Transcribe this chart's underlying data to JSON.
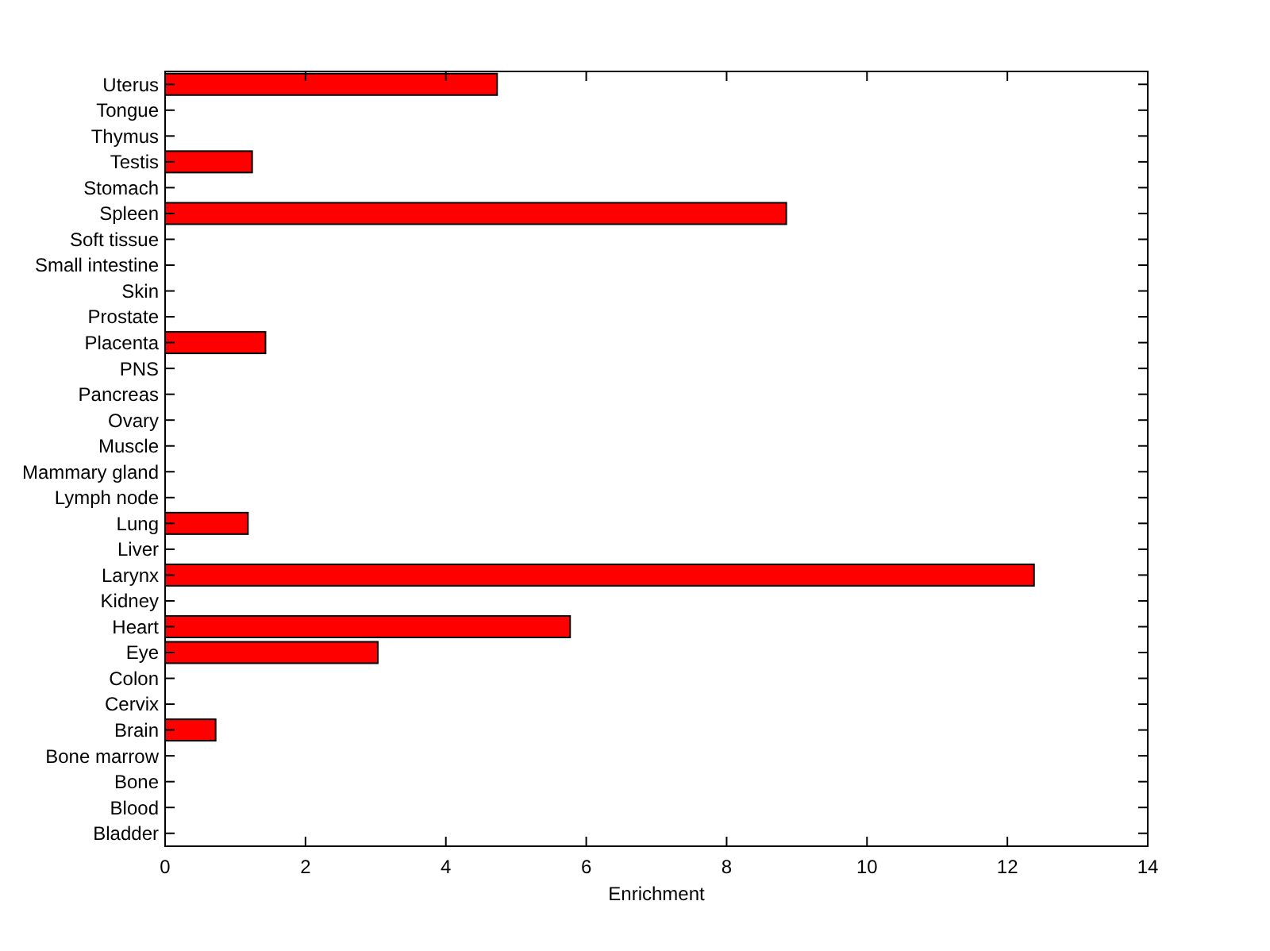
{
  "chart_data": {
    "type": "bar",
    "orientation": "horizontal",
    "xlabel": "Enrichment",
    "categories": [
      "Uterus",
      "Tongue",
      "Thymus",
      "Testis",
      "Stomach",
      "Spleen",
      "Soft tissue",
      "Small intestine",
      "Skin",
      "Prostate",
      "Placenta",
      "PNS",
      "Pancreas",
      "Ovary",
      "Muscle",
      "Mammary gland",
      "Lymph node",
      "Lung",
      "Liver",
      "Larynx",
      "Kidney",
      "Heart",
      "Eye",
      "Colon",
      "Cervix",
      "Brain",
      "Bone marrow",
      "Bone",
      "Blood",
      "Bladder"
    ],
    "values": [
      4.73,
      0,
      0,
      1.24,
      0,
      8.85,
      0,
      0,
      0,
      0,
      1.43,
      0,
      0,
      0,
      0,
      0,
      0,
      1.18,
      0,
      12.38,
      0,
      5.77,
      3.03,
      0,
      0,
      0.72,
      0,
      0,
      0,
      0
    ],
    "color": "#ff0000",
    "xlim": [
      0,
      14
    ],
    "xticks": [
      0,
      2,
      4,
      6,
      8,
      10,
      12,
      14
    ],
    "grid": false
  }
}
